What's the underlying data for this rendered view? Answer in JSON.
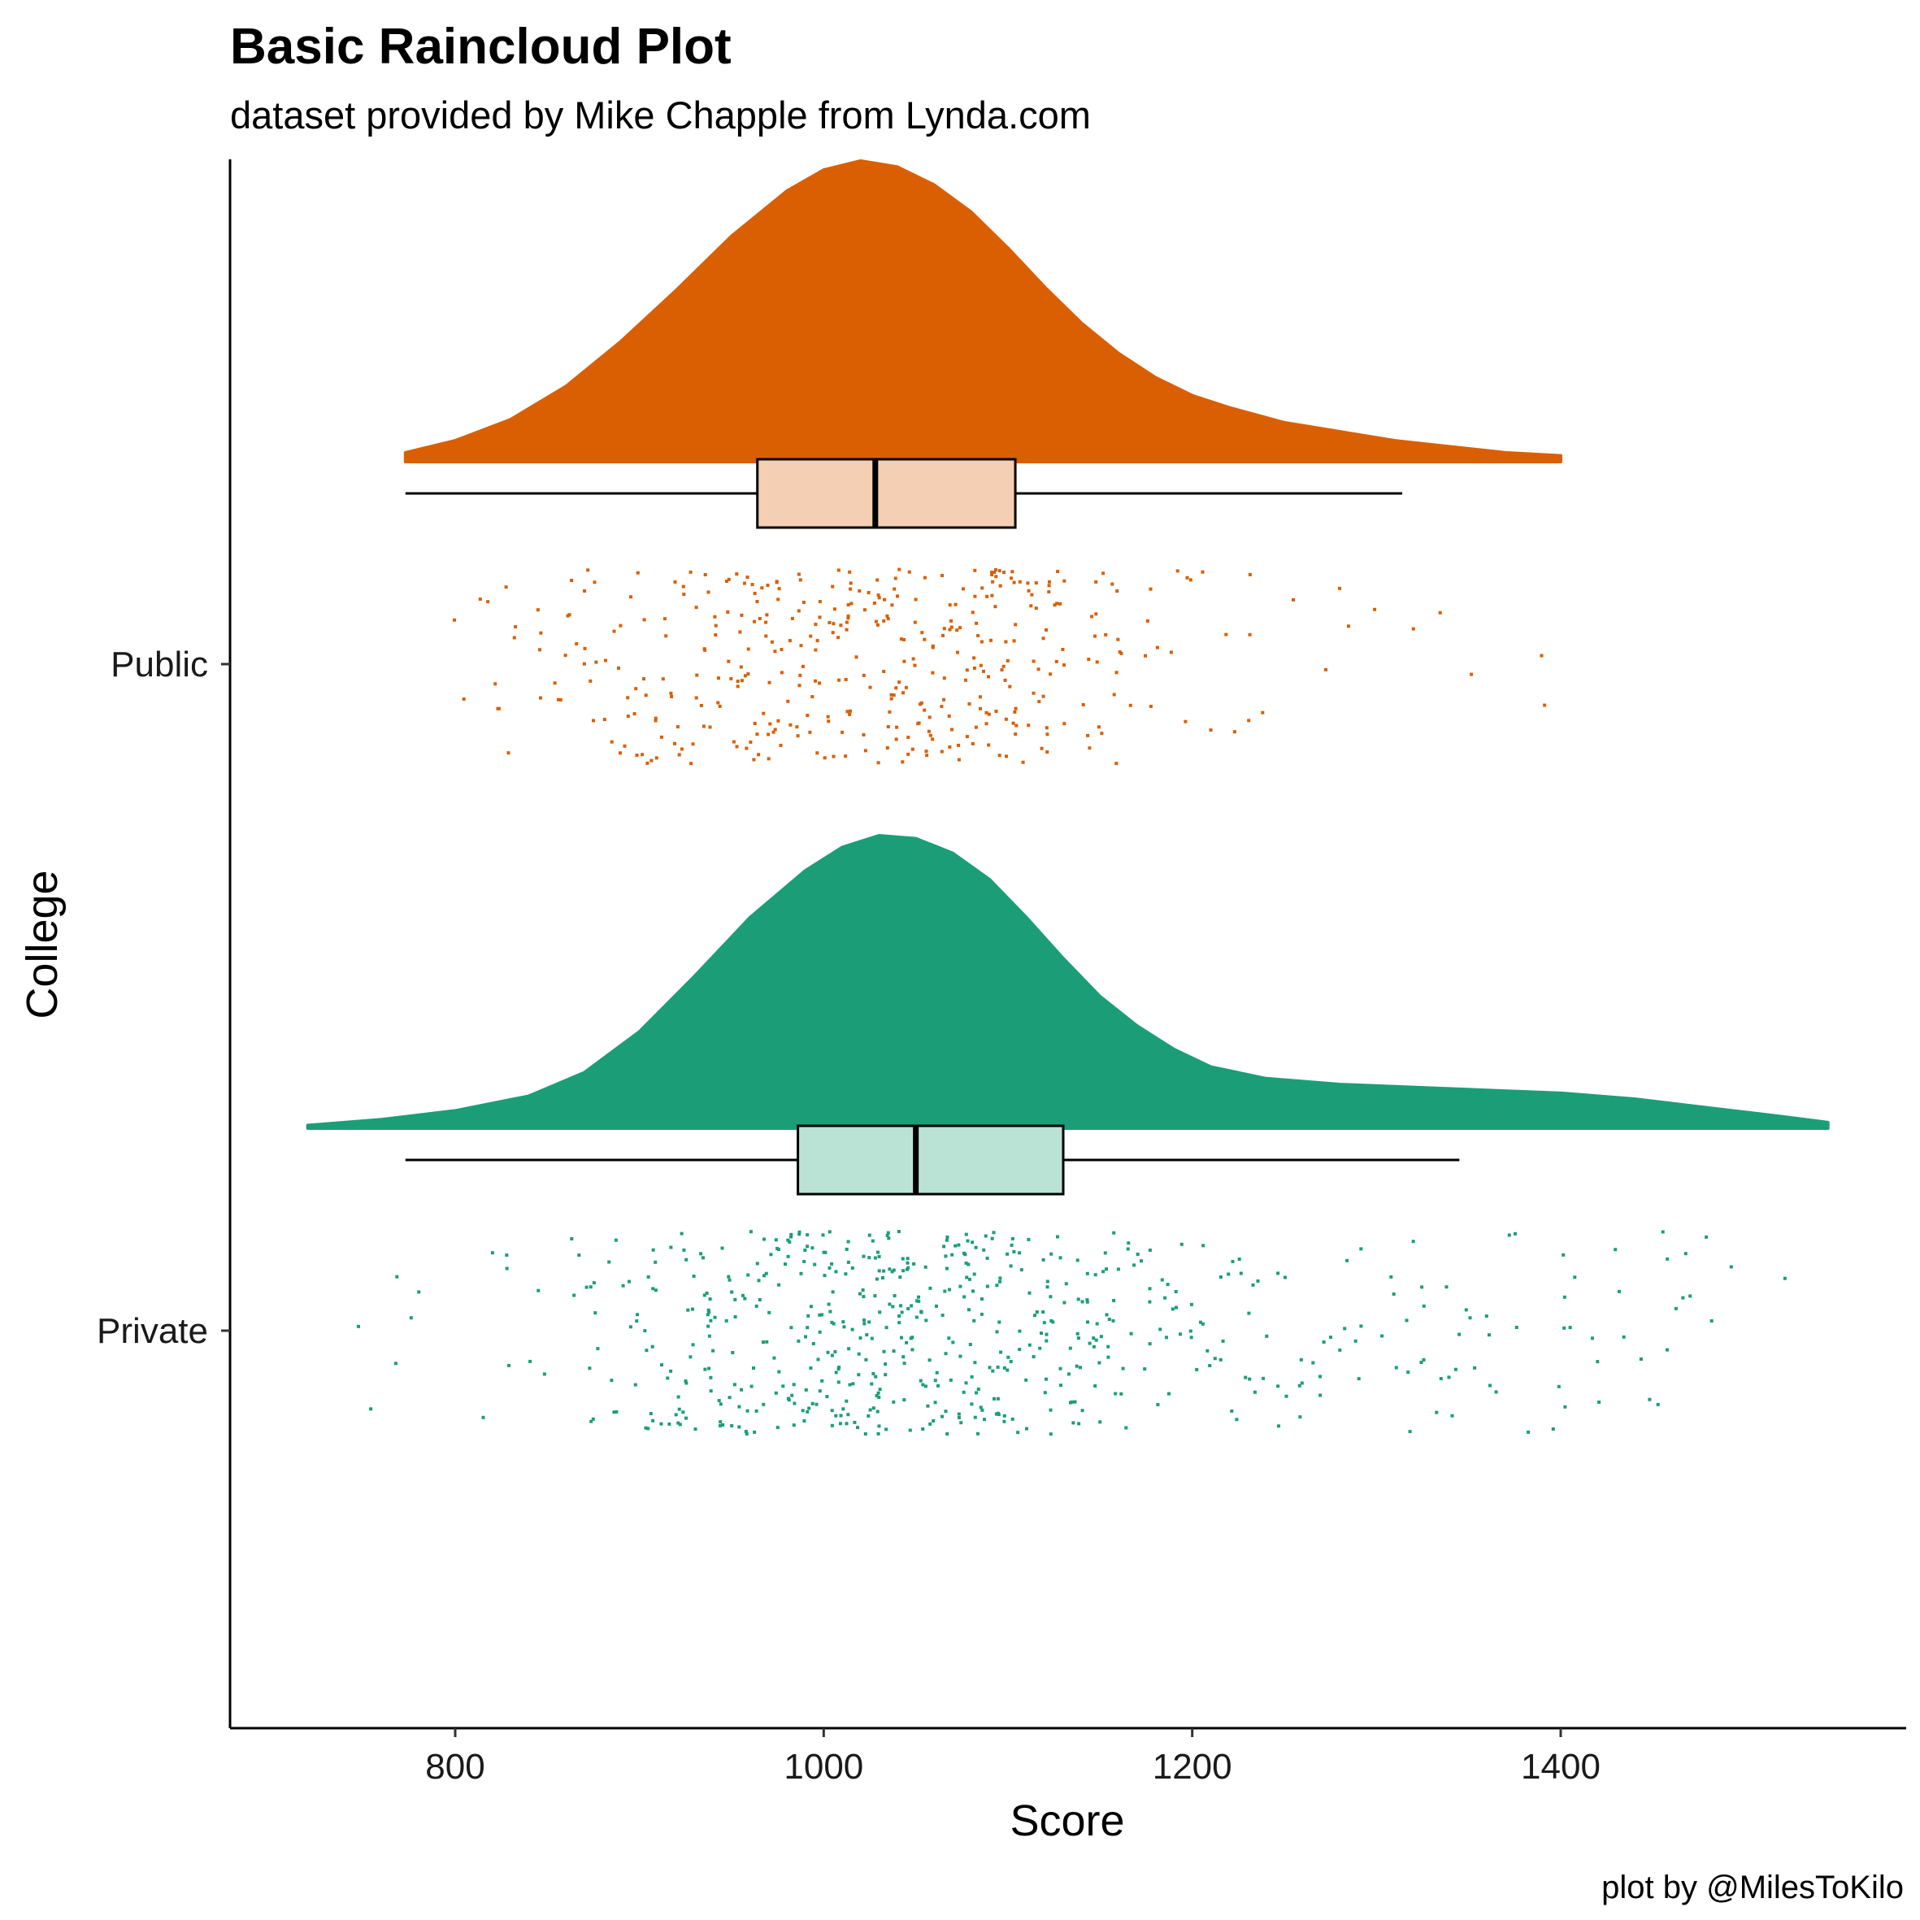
{
  "chart_data": {
    "type": "raincloud",
    "title": "Basic Raincloud Plot",
    "subtitle": "dataset provided by Mike Chapple from Lynda.com",
    "xlabel": "Score",
    "ylabel": "College",
    "caption": "plot by @MilesToKilo",
    "xlim": [
      680,
      1550
    ],
    "x_ticks": [
      800,
      1000,
      1200,
      1400
    ],
    "categories": [
      "Public",
      "Private"
    ],
    "grid": false,
    "legend": "none",
    "series": [
      {
        "name": "Public",
        "color": "#D95F02",
        "box_fill": "#F4CFB3",
        "box": {
          "min": 773,
          "q1": 964,
          "median": 1028,
          "q3": 1104,
          "max": 1314
        },
        "density_range": [
          773,
          1400
        ],
        "density": [
          [
            773,
            0.03
          ],
          [
            800,
            0.07
          ],
          [
            830,
            0.14
          ],
          [
            860,
            0.25
          ],
          [
            890,
            0.4
          ],
          [
            920,
            0.57
          ],
          [
            950,
            0.75
          ],
          [
            980,
            0.9
          ],
          [
            1000,
            0.97
          ],
          [
            1020,
            1.0
          ],
          [
            1040,
            0.98
          ],
          [
            1060,
            0.92
          ],
          [
            1080,
            0.83
          ],
          [
            1100,
            0.71
          ],
          [
            1120,
            0.58
          ],
          [
            1140,
            0.46
          ],
          [
            1160,
            0.36
          ],
          [
            1180,
            0.28
          ],
          [
            1200,
            0.22
          ],
          [
            1220,
            0.18
          ],
          [
            1250,
            0.13
          ],
          [
            1280,
            0.1
          ],
          [
            1310,
            0.07
          ],
          [
            1340,
            0.05
          ],
          [
            1370,
            0.03
          ],
          [
            1400,
            0.02
          ]
        ],
        "points_n": 420
      },
      {
        "name": "Private",
        "color": "#1B9E77",
        "box_fill": "#BAE3D6",
        "box": {
          "min": 773,
          "q1": 986,
          "median": 1050,
          "q3": 1130,
          "max": 1345
        },
        "density_range": [
          720,
          1545
        ],
        "density": [
          [
            720,
            0.01
          ],
          [
            760,
            0.03
          ],
          [
            800,
            0.06
          ],
          [
            840,
            0.11
          ],
          [
            870,
            0.19
          ],
          [
            900,
            0.33
          ],
          [
            930,
            0.52
          ],
          [
            960,
            0.72
          ],
          [
            990,
            0.88
          ],
          [
            1010,
            0.96
          ],
          [
            1030,
            1.0
          ],
          [
            1050,
            0.99
          ],
          [
            1070,
            0.94
          ],
          [
            1090,
            0.85
          ],
          [
            1110,
            0.72
          ],
          [
            1130,
            0.58
          ],
          [
            1150,
            0.45
          ],
          [
            1170,
            0.35
          ],
          [
            1190,
            0.27
          ],
          [
            1210,
            0.21
          ],
          [
            1240,
            0.17
          ],
          [
            1280,
            0.15
          ],
          [
            1320,
            0.14
          ],
          [
            1360,
            0.13
          ],
          [
            1400,
            0.12
          ],
          [
            1440,
            0.1
          ],
          [
            1480,
            0.07
          ],
          [
            1520,
            0.04
          ],
          [
            1545,
            0.02
          ]
        ],
        "points_n": 620
      }
    ]
  }
}
